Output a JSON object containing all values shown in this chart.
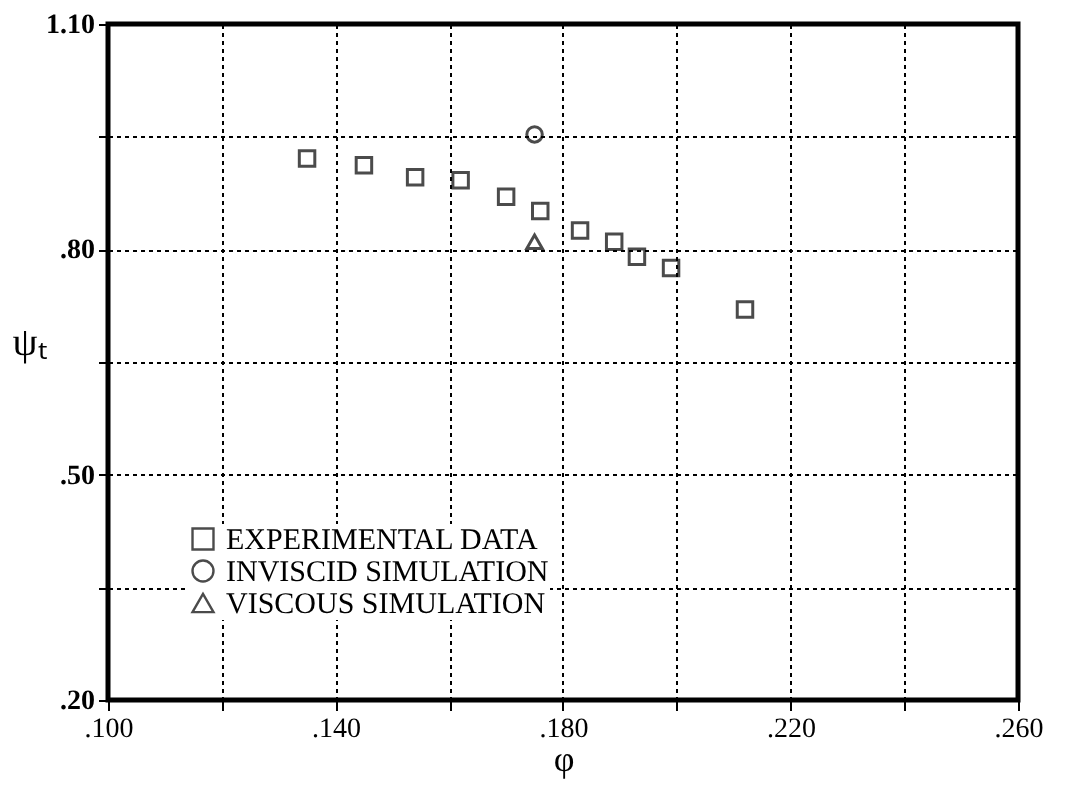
{
  "chart_data": {
    "type": "scatter",
    "xlabel": "φ",
    "ylabel": "ψₜ",
    "xlim": [
      0.1,
      0.26
    ],
    "ylim": [
      0.2,
      1.1
    ],
    "xticks": [
      {
        "value": 0.1,
        "label": ".100"
      },
      {
        "value": 0.12,
        "label": null
      },
      {
        "value": 0.14,
        "label": ".140"
      },
      {
        "value": 0.16,
        "label": null
      },
      {
        "value": 0.18,
        "label": ".180"
      },
      {
        "value": 0.2,
        "label": null
      },
      {
        "value": 0.22,
        "label": ".220"
      },
      {
        "value": 0.24,
        "label": null
      },
      {
        "value": 0.26,
        "label": ".260"
      }
    ],
    "yticks": [
      {
        "value": 0.2,
        "label": ".20"
      },
      {
        "value": 0.35,
        "label": null
      },
      {
        "value": 0.5,
        "label": ".50"
      },
      {
        "value": 0.65,
        "label": null
      },
      {
        "value": 0.8,
        "label": ".80"
      },
      {
        "value": 0.95,
        "label": null
      },
      {
        "value": 1.1,
        "label": "1.10"
      }
    ],
    "grid": true,
    "legend": "bottom left",
    "series": [
      {
        "name": "EXPERIMENTAL DATA",
        "color": "#000000",
        "marker": "square",
        "x": [
          0.135,
          0.145,
          0.154,
          0.162,
          0.17,
          0.176,
          0.183,
          0.189,
          0.193,
          0.199,
          0.212
        ],
        "values": [
          0.921,
          0.912,
          0.896,
          0.892,
          0.87,
          0.851,
          0.825,
          0.81,
          0.79,
          0.775,
          0.72
        ]
      },
      {
        "name": "INVISCID SIMULATION",
        "color": "#000000",
        "marker": "circle",
        "x": [
          0.175
        ],
        "values": [
          0.953
        ]
      },
      {
        "name": "VISCOUS SIMULATION",
        "color": "#000000",
        "marker": "triangle",
        "x": [
          0.175
        ],
        "values": [
          0.81
        ]
      }
    ]
  }
}
